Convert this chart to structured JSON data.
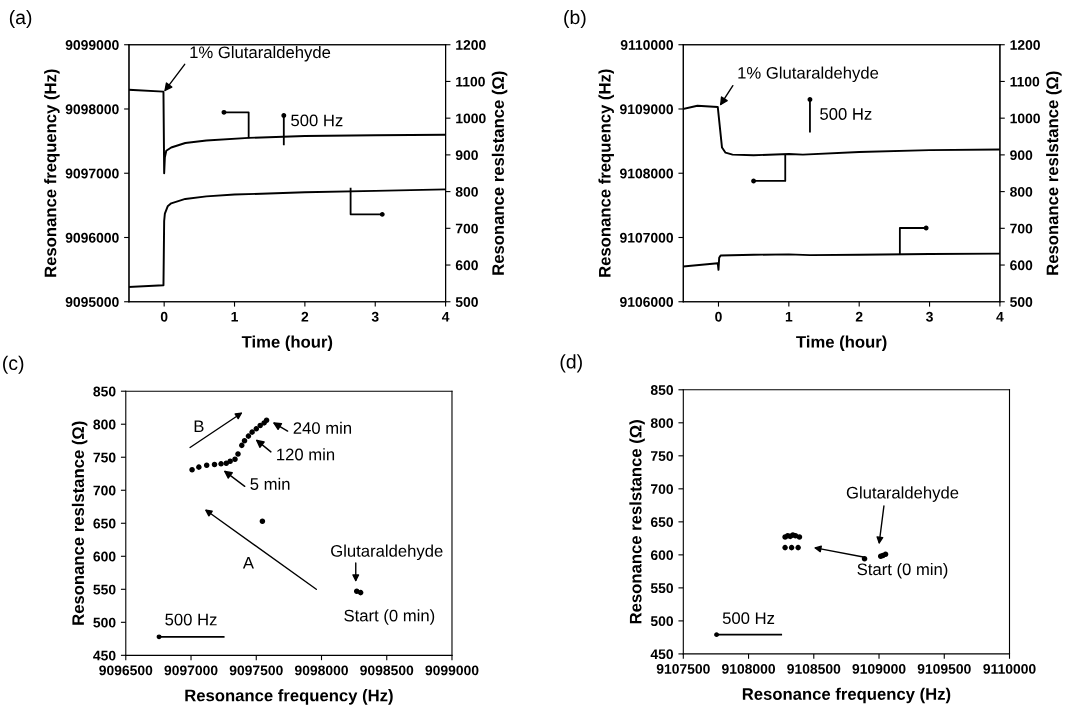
{
  "chart_data": [
    {
      "type": "line",
      "title": "(a)",
      "xlabel": "Time (hour)",
      "ylabel": "Resonance frequency (Hz)",
      "y2label": "Resonance reslstance (Ω)",
      "xlim": [
        -0.5,
        4
      ],
      "xticks": [
        0,
        1,
        2,
        3,
        4
      ],
      "ylim": [
        9095000,
        9099000
      ],
      "yticks": [
        9095000,
        9096000,
        9097000,
        9098000,
        9099000
      ],
      "y2lim": [
        500,
        1200
      ],
      "y2ticks": [
        500,
        600,
        700,
        800,
        900,
        1000,
        1100,
        1200
      ],
      "grid": false,
      "marker": "none",
      "line_style": "solid",
      "series": [
        {
          "color": "#000000",
          "x": [
            -0.5,
            -0.01,
            0,
            0.01,
            0.03,
            0.1,
            0.3,
            0.6,
            1.2,
            2,
            3,
            4
          ],
          "values": [
            9098300,
            9098270,
            9097000,
            9097250,
            9097350,
            9097400,
            9097470,
            9097510,
            9097550,
            9097580,
            9097590,
            9097600
          ]
        },
        {
          "color": "#000000",
          "axis": "y2",
          "x": [
            -0.5,
            -0.01,
            0,
            0.01,
            0.05,
            0.1,
            0.3,
            0.6,
            1,
            2,
            3,
            4
          ],
          "values": [
            540,
            545,
            720,
            740,
            760,
            768,
            780,
            787,
            792,
            798,
            802,
            806
          ]
        }
      ],
      "annotations": [
        {
          "text": "1% Glutaraldehyde",
          "x": 0,
          "y": 9098270
        },
        "500 Hz"
      ]
    },
    {
      "type": "line",
      "title": "(b)",
      "xlabel": "Time (hour)",
      "ylabel": "Resonance frequency (Hz)",
      "y2label": "Resonance reslstance (Ω)",
      "xlim": [
        -0.5,
        4
      ],
      "xticks": [
        0,
        1,
        2,
        3,
        4
      ],
      "ylim": [
        9106000,
        9110000
      ],
      "yticks": [
        9106000,
        9107000,
        9108000,
        9109000,
        9110000
      ],
      "y2lim": [
        500,
        1200
      ],
      "y2ticks": [
        500,
        600,
        700,
        800,
        900,
        1000,
        1100,
        1200
      ],
      "grid": false,
      "marker": "none",
      "line_style": "solid",
      "series": [
        {
          "color": "#000000",
          "x": [
            -0.5,
            -0.3,
            -0.01,
            0.05,
            0.1,
            0.2,
            0.5,
            1,
            1.2,
            2,
            3,
            4
          ],
          "values": [
            9109000,
            9109050,
            9109030,
            9108400,
            9108320,
            9108290,
            9108280,
            9108300,
            9108290,
            9108330,
            9108360,
            9108370
          ]
        },
        {
          "color": "#000000",
          "axis": "y2",
          "x": [
            -0.5,
            -0.01,
            0,
            0.01,
            0.03,
            0.5,
            1,
            1.3,
            2,
            3,
            4
          ],
          "values": [
            596,
            605,
            587,
            620,
            626,
            628,
            629,
            627,
            628,
            630,
            631
          ]
        }
      ],
      "annotations": [
        {
          "text": "1% Glutaraldehyde",
          "x": 0.02,
          "y": 9109050
        },
        "500 Hz"
      ]
    },
    {
      "type": "scatter",
      "title": "(c)",
      "xlabel": "Resonance frequency (Hz)",
      "ylabel": "Resonance reslstance (Ω)",
      "xlim": [
        9096500,
        9099000
      ],
      "xticks": [
        9096500,
        9097000,
        9097500,
        9098000,
        9098500,
        9099000
      ],
      "ylim": [
        450,
        850
      ],
      "yticks": [
        450,
        500,
        550,
        600,
        650,
        700,
        750,
        800,
        850
      ],
      "grid": false,
      "marker": "circle",
      "series": [
        {
          "color": "#000000",
          "x": [
            9098270,
            9098290,
            9098300,
            9097547,
            9097008,
            9097060,
            9097120,
            9097180,
            9097230,
            9097270,
            9097300,
            9097337,
            9097360,
            9097389,
            9097410,
            9097440,
            9097468,
            9097500,
            9097530,
            9097560,
            9097579
          ],
          "values": [
            547,
            null,
            545,
            653,
            731,
            735,
            738,
            739,
            740,
            741,
            744,
            747,
            755,
            768,
            775,
            782,
            788,
            793,
            798,
            802,
            806
          ]
        }
      ],
      "annotations": [
        "B",
        {
          "text": "240 min",
          "x": 9097626,
          "y": 803
        },
        "120 min",
        {
          "text": "5 min",
          "x": 9097250,
          "y": 730
        },
        "A",
        "Glutaraldehyde",
        "Start (0 min)",
        "500 Hz"
      ]
    },
    {
      "type": "scatter",
      "title": "(d)",
      "xlabel": "Resonance frequency (Hz)",
      "ylabel": "Resonance reslstance (Ω)",
      "xlim": [
        9107500,
        9110000
      ],
      "xticks": [
        9107500,
        9108000,
        9108500,
        9109000,
        9109500,
        9110000
      ],
      "ylim": [
        450,
        850
      ],
      "yticks": [
        450,
        500,
        550,
        600,
        650,
        700,
        750,
        800,
        850
      ],
      "grid": false,
      "marker": "circle",
      "series": [
        {
          "color": "#000000",
          "x": [
            9108280,
            9108300,
            9108320,
            9108340,
            9108360,
            9108390,
            9108280,
            9108330,
            9108380,
            9108889,
            9109013,
            9109030,
            9109050
          ],
          "values": [
            627,
            629,
            628,
            630,
            629,
            627,
            611,
            611,
            611,
            594,
            598,
            599,
            601
          ]
        }
      ],
      "annotations": [
        "Glutaraldehyde",
        "Start (0 min)",
        "500 Hz"
      ]
    }
  ]
}
